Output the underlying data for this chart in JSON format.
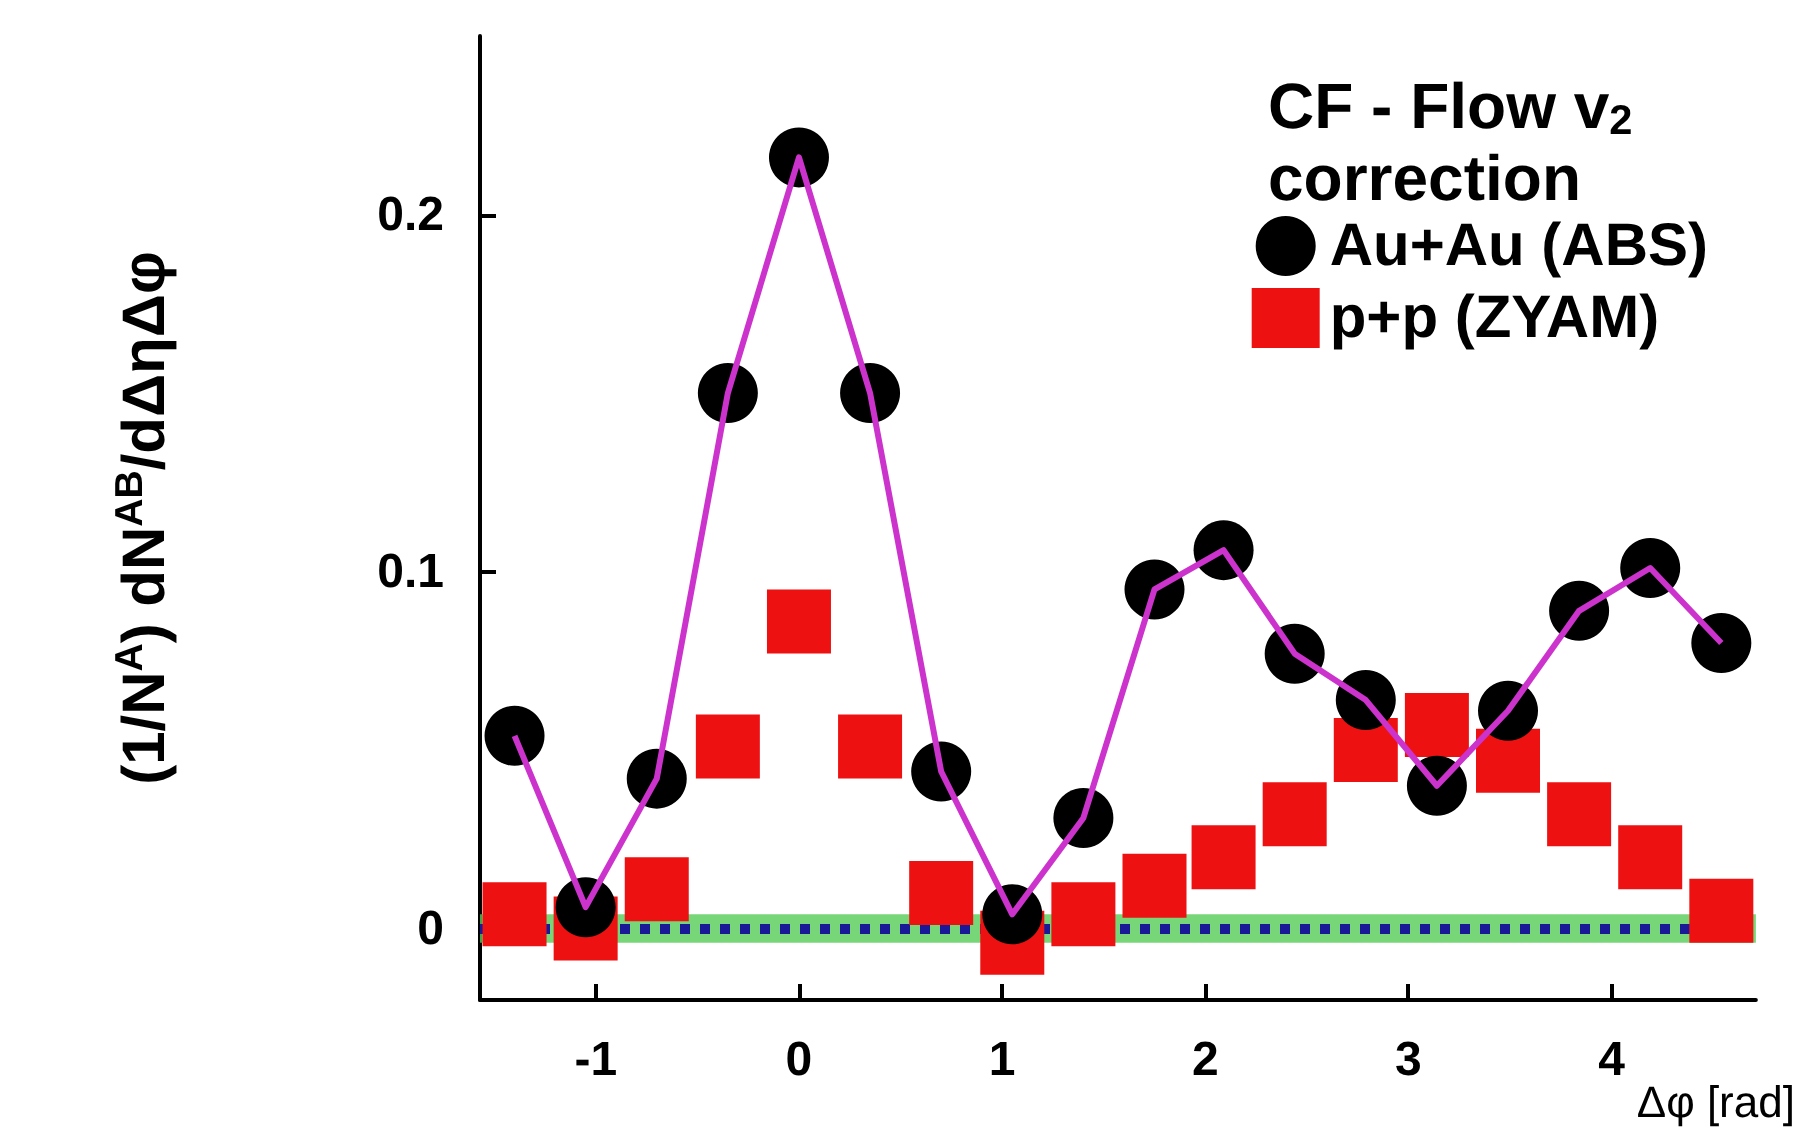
{
  "chart_data": {
    "type": "scatter",
    "xlabel": "Δφ [rad]",
    "ylabel": "(1/N$^{A}$) dN$^{AB}$/dΔηΔφ",
    "legend_title": "CF - Flow v$_{2}$ correction",
    "x": [
      -1.4,
      -1.05,
      -0.7,
      -0.35,
      0,
      0.35,
      0.7,
      1.05,
      1.4,
      1.75,
      2.09,
      2.44,
      2.79,
      3.14,
      3.49,
      3.84,
      4.19,
      4.54
    ],
    "series": [
      {
        "type": "line",
        "color": "#cc33cc",
        "marker": "none",
        "values": [
          0.054,
          0.006,
          0.042,
          0.15,
          0.216,
          0.15,
          0.044,
          0.004,
          0.031,
          0.095,
          0.106,
          0.077,
          0.064,
          0.04,
          0.061,
          0.089,
          0.101,
          0.08
        ]
      },
      {
        "name": "Au+Au (ABS)",
        "color": "#000000",
        "marker": "circle",
        "values": [
          0.054,
          0.006,
          0.042,
          0.15,
          0.216,
          0.15,
          0.044,
          0.004,
          0.031,
          0.095,
          0.106,
          0.077,
          0.064,
          0.04,
          0.061,
          0.089,
          0.101,
          0.08
        ]
      },
      {
        "name": "p+p (ZYAM)",
        "color": "#ee1111",
        "marker": "square",
        "values": [
          0.004,
          0.0,
          0.011,
          0.051,
          0.086,
          0.051,
          0.01,
          -0.004,
          0.004,
          0.012,
          0.02,
          0.032,
          0.05,
          0.057,
          0.047,
          0.032,
          0.02,
          0.005
        ]
      }
    ],
    "xlim": [
      -1.57,
      4.71
    ],
    "xticks": [
      -1,
      0,
      1,
      2,
      3,
      4
    ],
    "ylim": [
      -0.02,
      0.25
    ],
    "yticks": [
      0,
      0.1,
      0.2
    ],
    "bands": [
      {
        "axis": "y",
        "from": -0.004,
        "to": 0.004,
        "color": "#55cc55"
      }
    ],
    "ref_lines": [
      {
        "axis": "y",
        "value": 0,
        "color": "#1a1a99",
        "line_style": "dotted"
      }
    ],
    "grid": false,
    "legend": "top right"
  }
}
